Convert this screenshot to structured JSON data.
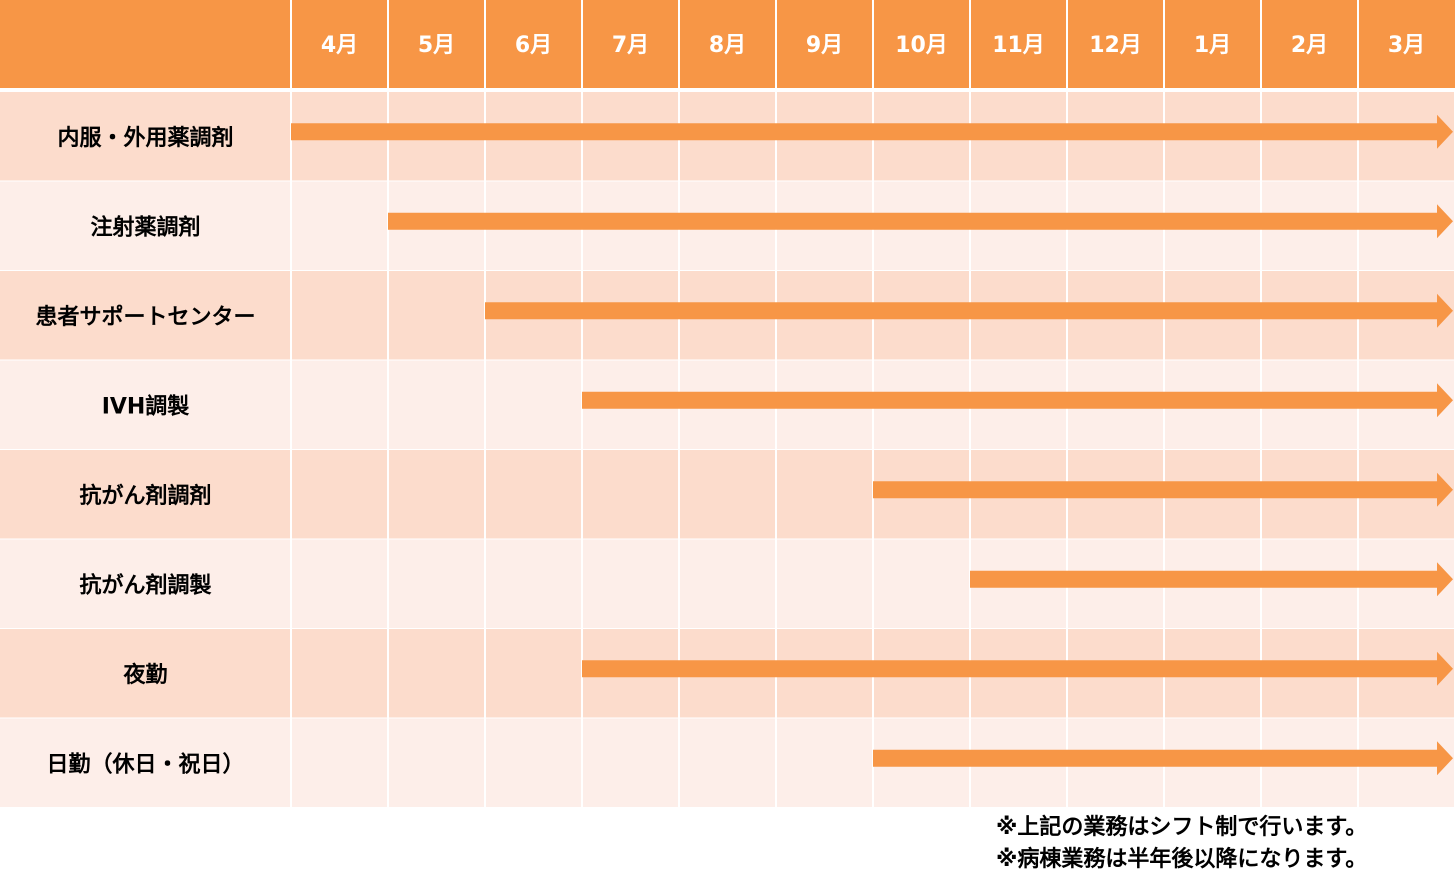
{
  "colors": {
    "header_bg": "#F79646",
    "row_dark": "#FCDCCC",
    "row_light": "#FDEEE9",
    "arrow": "#F79646",
    "grid": "#FFFFFF"
  },
  "chart_data": {
    "type": "gantt",
    "corner_label": "",
    "months": [
      "4月",
      "5月",
      "6月",
      "7月",
      "8月",
      "9月",
      "10月",
      "11月",
      "12月",
      "1月",
      "2月",
      "3月"
    ],
    "tasks": [
      {
        "label": "内服・外用薬調剤",
        "start_month": "4月",
        "end_month": "3月",
        "ongoing": true
      },
      {
        "label": "注射薬調剤",
        "start_month": "5月",
        "end_month": "3月",
        "ongoing": true
      },
      {
        "label": "患者サポートセンター",
        "start_month": "6月",
        "end_month": "3月",
        "ongoing": true
      },
      {
        "label": "IVH調製",
        "start_month": "7月",
        "end_month": "3月",
        "ongoing": true
      },
      {
        "label": "抗がん剤調剤",
        "start_month": "10月",
        "end_month": "3月",
        "ongoing": true
      },
      {
        "label": "抗がん剤調製",
        "start_month": "11月",
        "end_month": "3月",
        "ongoing": true
      },
      {
        "label": "夜勤",
        "start_month": "7月",
        "end_month": "3月",
        "ongoing": true
      },
      {
        "label": "日勤（休日・祝日）",
        "start_month": "10月",
        "end_month": "3月",
        "ongoing": true
      }
    ]
  },
  "notes": [
    "※上記の業務はシフト制で行います。",
    "※病棟業務は半年後以降になります。"
  ]
}
